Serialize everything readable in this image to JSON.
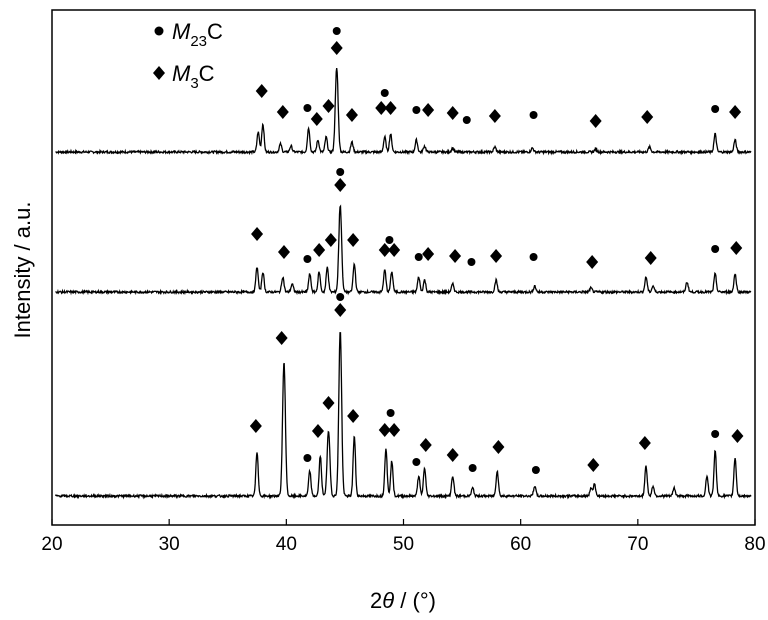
{
  "chart_data": {
    "type": "line",
    "title": "",
    "xlabel": {
      "prefix": "2",
      "theta": "θ",
      "suffix": " / (°)"
    },
    "ylabel": "Intensity / a.u.",
    "xlim": [
      20,
      80
    ],
    "ylim": [
      0,
      515
    ],
    "xticks": [
      "20",
      "30",
      "40",
      "50",
      "60",
      "70",
      "80"
    ],
    "grid": false,
    "legend": {
      "placement": "top-left",
      "entries": [
        {
          "marker": "circle",
          "italic": "M",
          "sub": "23",
          "suffix": "C"
        },
        {
          "marker": "diamond",
          "italic": "M",
          "sub": "3",
          "suffix": "C"
        }
      ]
    },
    "series": [
      {
        "name": "top",
        "baseline": 373,
        "peaks": [
          [
            37.6,
            20
          ],
          [
            38.0,
            28
          ],
          [
            39.5,
            8
          ],
          [
            40.4,
            6
          ],
          [
            41.9,
            24
          ],
          [
            42.7,
            12
          ],
          [
            43.4,
            15
          ],
          [
            44.3,
            84
          ],
          [
            45.6,
            10
          ],
          [
            48.4,
            15
          ],
          [
            48.9,
            18
          ],
          [
            51.1,
            12
          ],
          [
            51.8,
            6
          ],
          [
            54.2,
            4
          ],
          [
            57.8,
            5
          ],
          [
            61.0,
            4
          ],
          [
            66.4,
            3
          ],
          [
            71.0,
            5
          ],
          [
            76.6,
            18
          ],
          [
            78.3,
            12
          ]
        ],
        "markers": [
          [
            "c",
            44.3,
            494
          ],
          [
            "d",
            44.3,
            477
          ],
          [
            "d",
            37.9,
            434
          ],
          [
            "d",
            39.7,
            413
          ],
          [
            "c",
            41.8,
            417
          ],
          [
            "d",
            42.6,
            406
          ],
          [
            "d",
            43.6,
            419
          ],
          [
            "d",
            45.6,
            410
          ],
          [
            "c",
            48.4,
            432
          ],
          [
            "d",
            48.1,
            417
          ],
          [
            "d",
            48.9,
            417
          ],
          [
            "c",
            51.1,
            415
          ],
          [
            "d",
            52.1,
            415
          ],
          [
            "d",
            54.2,
            412
          ],
          [
            "c",
            55.4,
            405
          ],
          [
            "d",
            57.8,
            409
          ],
          [
            "c",
            61.1,
            410
          ],
          [
            "d",
            66.4,
            404
          ],
          [
            "d",
            70.8,
            408
          ],
          [
            "c",
            76.6,
            416
          ],
          [
            "d",
            78.3,
            413
          ]
        ]
      },
      {
        "name": "middle",
        "baseline": 233,
        "peaks": [
          [
            37.5,
            25
          ],
          [
            38.0,
            20
          ],
          [
            39.7,
            15
          ],
          [
            40.5,
            8
          ],
          [
            42.0,
            18
          ],
          [
            42.8,
            20
          ],
          [
            43.5,
            25
          ],
          [
            44.6,
            87
          ],
          [
            45.8,
            28
          ],
          [
            48.4,
            22
          ],
          [
            49.0,
            20
          ],
          [
            51.3,
            15
          ],
          [
            51.8,
            12
          ],
          [
            54.2,
            8
          ],
          [
            57.9,
            12
          ],
          [
            61.2,
            6
          ],
          [
            66.0,
            4
          ],
          [
            70.7,
            15
          ],
          [
            71.3,
            6
          ],
          [
            74.2,
            10
          ],
          [
            76.6,
            18
          ],
          [
            78.3,
            18
          ]
        ],
        "markers": [
          [
            "c",
            44.6,
            353
          ],
          [
            "d",
            44.6,
            340
          ],
          [
            "d",
            37.5,
            291
          ],
          [
            "d",
            39.8,
            273
          ],
          [
            "c",
            41.8,
            266
          ],
          [
            "d",
            42.8,
            275
          ],
          [
            "d",
            43.8,
            285
          ],
          [
            "d",
            45.7,
            285
          ],
          [
            "c",
            48.8,
            285
          ],
          [
            "d",
            48.4,
            275
          ],
          [
            "d",
            49.2,
            275
          ],
          [
            "c",
            51.3,
            268
          ],
          [
            "d",
            52.1,
            271
          ],
          [
            "d",
            54.4,
            269
          ],
          [
            "c",
            55.8,
            263
          ],
          [
            "d",
            57.9,
            269
          ],
          [
            "c",
            61.1,
            268
          ],
          [
            "d",
            66.1,
            263
          ],
          [
            "d",
            71.1,
            267
          ],
          [
            "c",
            76.6,
            276
          ],
          [
            "d",
            78.4,
            277
          ]
        ]
      },
      {
        "name": "bottom",
        "baseline": 29,
        "peaks": [
          [
            37.5,
            44
          ],
          [
            39.8,
            134
          ],
          [
            42.0,
            25
          ],
          [
            42.9,
            40
          ],
          [
            43.6,
            65
          ],
          [
            44.6,
            166
          ],
          [
            45.8,
            60
          ],
          [
            48.5,
            48
          ],
          [
            49.0,
            35
          ],
          [
            51.3,
            20
          ],
          [
            51.8,
            28
          ],
          [
            54.2,
            20
          ],
          [
            55.9,
            8
          ],
          [
            58.0,
            25
          ],
          [
            61.2,
            10
          ],
          [
            66.0,
            8
          ],
          [
            66.3,
            12
          ],
          [
            70.7,
            30
          ],
          [
            71.3,
            10
          ],
          [
            73.1,
            8
          ],
          [
            75.9,
            20
          ],
          [
            76.6,
            45
          ],
          [
            78.3,
            38
          ]
        ],
        "markers": [
          [
            "c",
            44.6,
            228
          ],
          [
            "d",
            44.6,
            215
          ],
          [
            "d",
            37.4,
            99
          ],
          [
            "d",
            39.6,
            187
          ],
          [
            "c",
            41.8,
            67
          ],
          [
            "d",
            42.7,
            94
          ],
          [
            "d",
            43.6,
            122
          ],
          [
            "d",
            45.7,
            109
          ],
          [
            "c",
            48.9,
            112
          ],
          [
            "d",
            48.4,
            95
          ],
          [
            "d",
            49.2,
            95
          ],
          [
            "c",
            51.1,
            63
          ],
          [
            "d",
            51.9,
            80
          ],
          [
            "d",
            54.2,
            70
          ],
          [
            "c",
            55.9,
            57
          ],
          [
            "d",
            58.1,
            78
          ],
          [
            "c",
            61.3,
            55
          ],
          [
            "d",
            66.2,
            60
          ],
          [
            "d",
            70.6,
            82
          ],
          [
            "c",
            76.6,
            91
          ],
          [
            "d",
            78.5,
            89
          ]
        ]
      }
    ]
  }
}
